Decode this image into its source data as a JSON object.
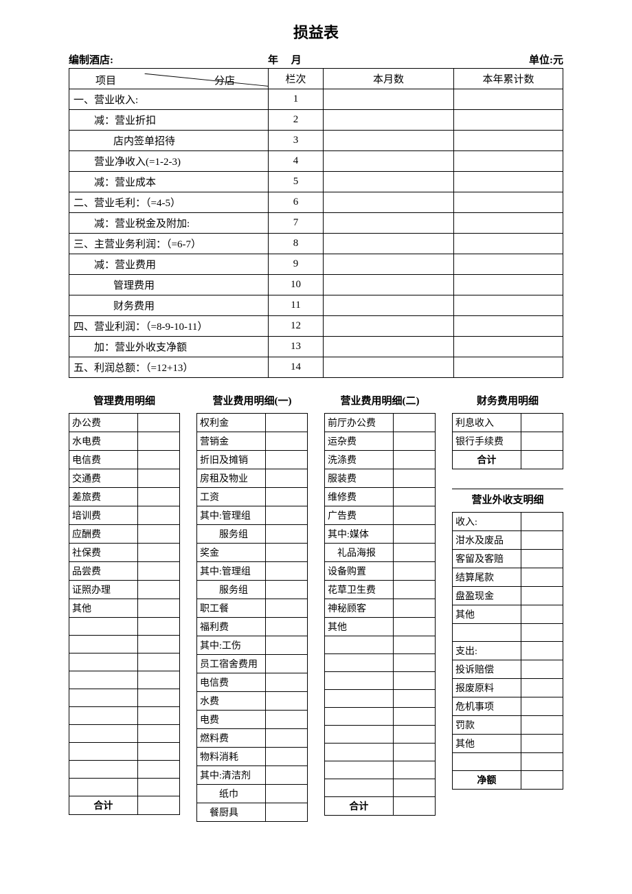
{
  "title": "损益表",
  "meta": {
    "hotel": "编制酒店:",
    "year": "年",
    "month": "月",
    "unit": "单位:元"
  },
  "main_headers": {
    "project": "项目",
    "branch": "分店",
    "col2": "栏次",
    "col3": "本月数",
    "col4": "本年累计数"
  },
  "main_rows": [
    {
      "label": "一、营业收入:",
      "bold": true,
      "indent": 0,
      "num": "1"
    },
    {
      "label": "减：营业折扣",
      "bold": false,
      "indent": 1,
      "num": "2"
    },
    {
      "label": "店内签单招待",
      "bold": false,
      "indent": 2,
      "num": "3"
    },
    {
      "label": "营业净收入(=1-2-3)",
      "bold": false,
      "indent": 1,
      "num": "4"
    },
    {
      "label": "减：营业成本",
      "bold": false,
      "indent": 1,
      "num": "5"
    },
    {
      "label": "二、营业毛利：（=4-5）",
      "bold": true,
      "indent": 0,
      "num": "6"
    },
    {
      "label": "减：营业税金及附加:",
      "bold": false,
      "indent": 1,
      "num": "7"
    },
    {
      "label": "三、主营业务利润：（=6-7）",
      "bold": true,
      "indent": 0,
      "num": "8"
    },
    {
      "label": "减：营业费用",
      "bold": false,
      "indent": 1,
      "num": "9"
    },
    {
      "label": "管理费用",
      "bold": false,
      "indent": 2,
      "num": "10"
    },
    {
      "label": "财务费用",
      "bold": false,
      "indent": 2,
      "num": "11"
    },
    {
      "label": "四、营业利润：（=8-9-10-11）",
      "bold": true,
      "indent": 0,
      "num": "12"
    },
    {
      "label": "加：营业外收支净额",
      "bold": false,
      "indent": 1,
      "num": "13"
    },
    {
      "label": "五、利润总额：（=12+13）",
      "bold": true,
      "indent": 0,
      "num": "14"
    }
  ],
  "sub1": {
    "title": "管理费用明细",
    "rows": [
      "办公费",
      "水电费",
      "电信费",
      "交通费",
      "差旅费",
      "培训费",
      "应酬费",
      "社保费",
      "品尝费",
      "证照办理",
      "其他",
      "",
      "",
      "",
      "",
      "",
      "",
      "",
      "",
      "",
      ""
    ],
    "total": "合计"
  },
  "sub2": {
    "title": "营业费用明细(一)",
    "rows": [
      "权利金",
      "营销金",
      "折旧及摊销",
      "房租及物业",
      "工资",
      "其中:管理组",
      "　　服务组",
      "奖金",
      "其中:管理组",
      "　　服务组",
      "职工餐",
      "福利费",
      "其中:工伤",
      "员工宿舍费用",
      "电信费",
      "水费",
      "电费",
      "燃料费",
      "物料消耗",
      "其中:清洁剂",
      "　　纸巾"
    ],
    "total": "　餐厨具"
  },
  "sub3": {
    "title": "营业费用明细(二)",
    "rows": [
      "前厅办公费",
      "运杂费",
      "洗涤费",
      "服装费",
      "维修费",
      "广告费",
      "其中:媒体",
      "　礼品海报",
      "设备购置",
      "花草卫生费",
      "神秘顾客",
      "其他",
      "",
      "",
      "",
      "",
      "",
      "",
      "",
      "",
      ""
    ],
    "total": "合计"
  },
  "sub4a": {
    "title": "财务费用明细",
    "rows": [
      "利息收入",
      "银行手续费"
    ],
    "total": "合计"
  },
  "sub4b": {
    "title": "营业外收支明细",
    "rows": [
      "收入:",
      "泔水及废品",
      "客留及客赔",
      "结算尾款",
      "盘盈现金",
      "其他",
      "",
      "支出:",
      "投诉赔偿",
      "报废原料",
      "危机事项",
      "罚款",
      "其他",
      ""
    ],
    "total": "净额"
  }
}
